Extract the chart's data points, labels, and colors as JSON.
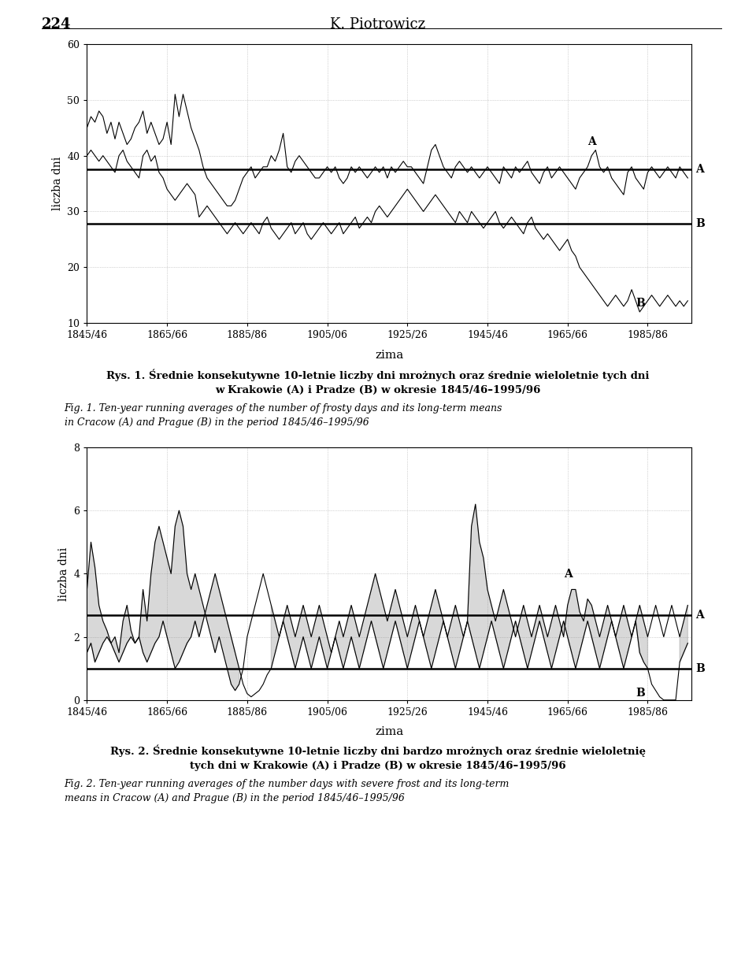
{
  "page_header": "224",
  "page_author": "K. Piotrowicz",
  "chart1": {
    "ylabel": "liczba dni",
    "xlabel": "zima",
    "ylim": [
      10,
      60
    ],
    "yticks": [
      10,
      20,
      30,
      40,
      50,
      60
    ],
    "mean_A": 37.5,
    "mean_B": 27.8,
    "xticklabels": [
      "1845/46",
      "1865/66",
      "1885/86",
      "1905/06",
      "1925/26",
      "1945/46",
      "1965/66",
      "1985/86"
    ],
    "xtick_years": [
      1845,
      1865,
      1885,
      1905,
      1925,
      1945,
      1965,
      1985
    ],
    "caption_pl_line1": "Rys. 1. Średnie konsekutywne 10-letnie liczby dni mrożnych oraz średnie wieloletnie tych dni",
    "caption_pl_line2": "w Krakowie (A) i Pradze (B) w okresie 1845/46–1995/96",
    "caption_en_line1": "Fig. 1. Ten-year running averages of the number of frosty days and its long-term means",
    "caption_en_line2": "in Cracow (A) and Prague (B) in the period 1845/46–1995/96"
  },
  "chart2": {
    "ylabel": "liczba dni",
    "xlabel": "zima",
    "ylim": [
      0,
      8
    ],
    "yticks": [
      0,
      2,
      4,
      6,
      8
    ],
    "mean_A": 2.7,
    "mean_B": 1.0,
    "xticklabels": [
      "1845/46",
      "1865/66",
      "1885/86",
      "1905/06",
      "1925/26",
      "1945/46",
      "1965/66",
      "1985/86"
    ],
    "xtick_years": [
      1845,
      1865,
      1885,
      1905,
      1925,
      1945,
      1965,
      1985
    ],
    "caption_pl_line1": "Rys. 2. Średnie konsekutywne 10-letnie liczby dni bardzo mrożnych oraz średnie wieloletnię",
    "caption_pl_line2": "tych dni w Krakowie (A) i Pradze (B) w okresie 1845/46–1995/96",
    "caption_en_line1": "Fig. 2. Ten-year running averages of the number days with severe frost and its long-term",
    "caption_en_line2": "means in Cracow (A) and Prague (B) in the period 1845/46–1995/96"
  },
  "background_color": "#ffffff",
  "line_color": "#000000",
  "grid_color": "#aaaaaa",
  "shading_color": "#cccccc"
}
